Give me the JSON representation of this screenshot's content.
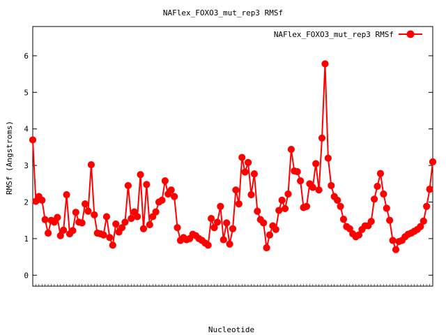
{
  "chart_data": {
    "type": "line",
    "title": "NAFlex_FOXO3_mut_rep3 RMSf",
    "xlabel": "Nucleotide",
    "ylabel": "RMSf (Angstroms)",
    "ylim": [
      -0.3,
      6.8
    ],
    "yticks": [
      0,
      1,
      2,
      3,
      4,
      5,
      6
    ],
    "x_tick_labels_note": "",
    "legend_position": "top-right",
    "grid": false,
    "series": [
      {
        "name": "NAFlex_FOXO3_mut_rep3 RMSf",
        "color": "#ff0000",
        "marker": "filled-circle",
        "values": [
          3.7,
          2.02,
          2.15,
          2.05,
          1.52,
          1.15,
          1.5,
          1.45,
          1.58,
          1.08,
          1.23,
          2.2,
          1.13,
          1.22,
          1.72,
          1.45,
          1.43,
          1.95,
          1.75,
          3.02,
          1.65,
          1.15,
          1.13,
          1.1,
          1.6,
          1.03,
          0.82,
          1.4,
          1.18,
          1.3,
          1.45,
          2.45,
          1.55,
          1.73,
          1.6,
          2.75,
          1.27,
          2.48,
          1.38,
          1.6,
          1.73,
          2.0,
          2.05,
          2.58,
          2.22,
          2.33,
          2.15,
          1.3,
          0.95,
          1.03,
          0.97,
          1.0,
          1.12,
          1.08,
          1.0,
          0.95,
          0.88,
          0.82,
          1.55,
          1.3,
          1.45,
          1.88,
          0.97,
          1.43,
          0.85,
          1.27,
          2.33,
          1.95,
          3.22,
          2.82,
          3.08,
          2.2,
          2.77,
          1.75,
          1.52,
          1.43,
          0.75,
          1.1,
          1.35,
          1.25,
          1.77,
          2.05,
          1.82,
          2.22,
          3.44,
          2.85,
          2.83,
          2.58,
          1.85,
          1.88,
          2.5,
          2.4,
          3.05,
          2.33,
          3.75,
          5.78,
          3.2,
          2.45,
          2.15,
          2.05,
          1.88,
          1.53,
          1.33,
          1.27,
          1.13,
          1.05,
          1.1,
          1.25,
          1.35,
          1.35,
          1.47,
          2.08,
          2.43,
          2.78,
          2.22,
          1.83,
          1.5,
          0.95,
          0.7,
          0.92,
          0.95,
          1.05,
          1.12,
          1.15,
          1.2,
          1.25,
          1.33,
          1.48,
          1.88,
          2.35,
          3.1
        ]
      }
    ]
  }
}
